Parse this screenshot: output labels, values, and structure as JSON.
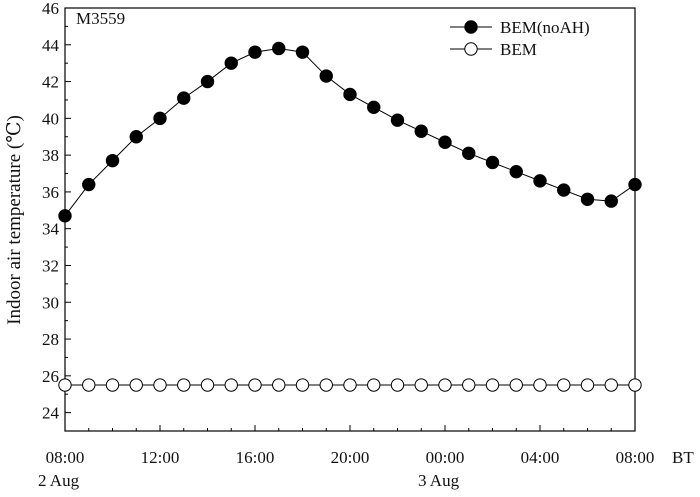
{
  "chart_data": {
    "type": "line",
    "panel_label": "M3559",
    "ylabel": "Indoor  air  temperature  (℃)",
    "xlabel": "BT",
    "ylim": [
      23,
      46
    ],
    "y_ticks": [
      24,
      26,
      28,
      30,
      32,
      34,
      36,
      38,
      40,
      42,
      44,
      46
    ],
    "x_range": [
      "2 Aug 08:00",
      "3 Aug 08:00"
    ],
    "x_ticks": [
      {
        "label": "08:00",
        "date_label": "2 Aug"
      },
      {
        "label": "12:00",
        "date_label": ""
      },
      {
        "label": "16:00",
        "date_label": ""
      },
      {
        "label": "20:00",
        "date_label": ""
      },
      {
        "label": "00:00",
        "date_label": "3 Aug"
      },
      {
        "label": "04:00",
        "date_label": ""
      },
      {
        "label": "08:00",
        "date_label": ""
      }
    ],
    "x": [
      "08:00",
      "09:00",
      "10:00",
      "11:00",
      "12:00",
      "13:00",
      "14:00",
      "15:00",
      "16:00",
      "17:00",
      "18:00",
      "19:00",
      "20:00",
      "21:00",
      "22:00",
      "23:00",
      "00:00",
      "01:00",
      "02:00",
      "03:00",
      "04:00",
      "05:00",
      "06:00",
      "07:00",
      "08:00"
    ],
    "series": [
      {
        "name": "BEM(noAH)",
        "marker": "filled-circle",
        "color": "#000000",
        "values": [
          34.7,
          36.4,
          37.7,
          39.0,
          40.0,
          41.1,
          42.0,
          43.0,
          43.6,
          43.8,
          43.6,
          42.3,
          41.3,
          40.6,
          39.9,
          39.3,
          38.7,
          38.1,
          37.6,
          37.1,
          36.6,
          36.1,
          35.6,
          35.5,
          36.4
        ]
      },
      {
        "name": "BEM",
        "marker": "open-circle",
        "color": "#000000",
        "values": [
          25.5,
          25.5,
          25.5,
          25.5,
          25.5,
          25.5,
          25.5,
          25.5,
          25.5,
          25.5,
          25.5,
          25.5,
          25.5,
          25.5,
          25.5,
          25.5,
          25.5,
          25.5,
          25.5,
          25.5,
          25.5,
          25.5,
          25.5,
          25.5,
          25.5
        ]
      }
    ],
    "legend_position": "top-right",
    "grid": false
  }
}
